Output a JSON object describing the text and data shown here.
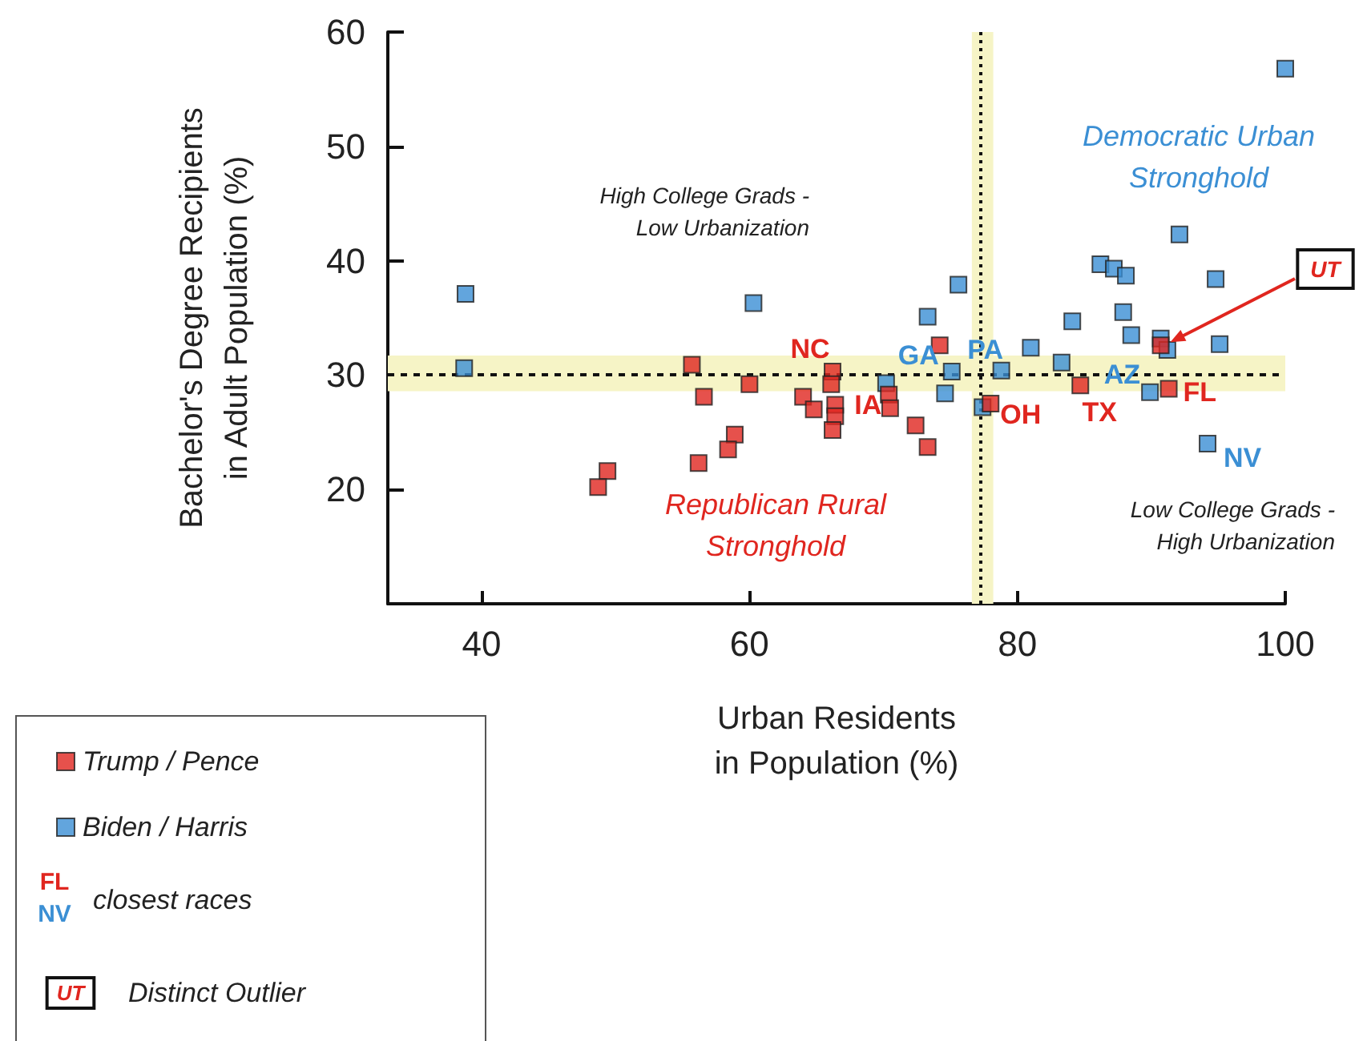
{
  "chart_data": {
    "type": "scatter",
    "xlabel": "Urban Residents\nin Population (%)",
    "ylabel": "Bachelor's Degree Recipients\nin Adult Population (%)",
    "xlim": [
      33,
      100
    ],
    "xticks": [
      40,
      60,
      80,
      100
    ],
    "ylim": [
      10,
      60
    ],
    "yticks": [
      20,
      30,
      40,
      50,
      60
    ],
    "marker": "square",
    "grid": false,
    "legend": "bottom left",
    "series": [
      {
        "name": "Trump / Pence",
        "color": "#e0261f",
        "x": [
          55.7,
          56.6,
          60.0,
          64.0,
          64.8,
          66.2,
          66.1,
          66.4,
          66.4,
          66.2,
          58.9,
          58.4,
          56.2,
          49.4,
          48.7,
          74.2,
          70.4,
          70.5,
          72.4,
          73.3,
          78.0,
          84.7,
          91.3,
          90.7
        ],
        "values": [
          30.9,
          28.1,
          29.2,
          28.1,
          27.0,
          30.3,
          29.2,
          27.4,
          26.4,
          25.2,
          24.8,
          23.5,
          22.3,
          21.6,
          20.2,
          32.6,
          28.3,
          27.1,
          25.6,
          23.7,
          27.5,
          29.1,
          28.8,
          32.6
        ]
      },
      {
        "name": "Biden / Harris",
        "color": "#3b8fd4",
        "x": [
          38.8,
          38.7,
          60.3,
          70.2,
          75.6,
          73.3,
          75.1,
          74.6,
          77.4,
          78.8,
          81.0,
          83.3,
          84.1,
          86.2,
          87.2,
          88.1,
          87.9,
          88.5,
          90.7,
          91.2,
          89.9,
          92.1,
          94.8,
          95.1,
          94.2,
          100
        ],
        "values": [
          37.1,
          30.6,
          36.3,
          29.3,
          37.9,
          35.1,
          30.3,
          28.4,
          27.2,
          30.4,
          32.4,
          31.1,
          34.7,
          39.7,
          39.3,
          38.7,
          35.5,
          33.5,
          33.2,
          32.2,
          28.5,
          42.3,
          38.4,
          32.7,
          24.0,
          56.8
        ]
      }
    ],
    "ref_lines": [
      {
        "axis": "y",
        "value": 30,
        "line_style": "dashed"
      },
      {
        "axis": "x",
        "value": 77.2,
        "line_style": "dotted"
      }
    ],
    "bands": [
      {
        "axis": "y",
        "from": 28.6,
        "to": 31.7,
        "color": "#f6f4c6"
      },
      {
        "axis": "x",
        "from": 76.6,
        "to": 78.2,
        "color": "#f6f4c6"
      }
    ],
    "annotations": [
      "High College Grads -\nLow Urbanization",
      "Low College Grads -\nHigh Urbanization",
      "Democratic Urban\nStronghold",
      "Republican Rural\nStronghold",
      {
        "text": "NC",
        "x": 66.2,
        "y": 30.3
      },
      {
        "text": "GA",
        "x": 75.1,
        "y": 30.3
      },
      {
        "text": "IA",
        "x": 66.4,
        "y": 27.4
      },
      {
        "text": "PA",
        "x": 78.8,
        "y": 30.4
      },
      {
        "text": "OH",
        "x": 78.0,
        "y": 27.5
      },
      {
        "text": "AZ",
        "x": 89.9,
        "y": 28.5
      },
      {
        "text": "TX",
        "x": 84.7,
        "y": 29.1
      },
      {
        "text": "FL",
        "x": 91.3,
        "y": 28.8
      },
      {
        "text": "NV",
        "x": 94.2,
        "y": 24.0
      },
      "UT",
      "closest races",
      "Distinct Outlier"
    ]
  }
}
